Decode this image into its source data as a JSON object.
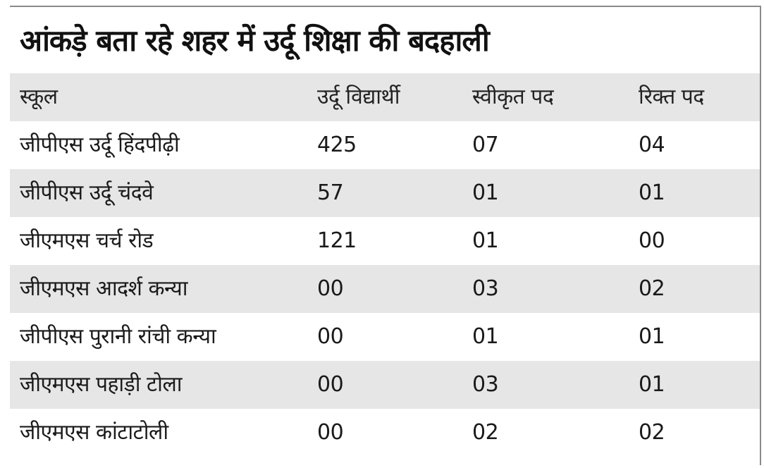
{
  "title": "आंकड़े बता रहे शहर में उर्दू शिक्षा की बदहाली",
  "table": {
    "headers": [
      "स्कूल",
      "उर्दू विद्यार्थी",
      "स्वीकृत पद",
      "रिक्त पद"
    ],
    "rows": [
      [
        "जीपीएस उर्दू हिंदपीढ़ी",
        "425",
        "07",
        "04"
      ],
      [
        "जीपीएस उर्दू चंदवे",
        "57",
        "01",
        "01"
      ],
      [
        "जीएमएस चर्च रोड",
        "121",
        "01",
        "00"
      ],
      [
        "जीएमएस आदर्श कन्या",
        "00",
        "03",
        "02"
      ],
      [
        "जीपीएस पुरानी रांची कन्या",
        "00",
        "01",
        "01"
      ],
      [
        "जीएमएस पहाड़ी टोला",
        "00",
        "03",
        "01"
      ],
      [
        "जीएमएस कांटाटोली",
        "00",
        "02",
        "02"
      ]
    ]
  },
  "colors": {
    "shaded_row": "#e6e6e6",
    "border": "#8a8a8a",
    "text": "#1a1a1a"
  }
}
